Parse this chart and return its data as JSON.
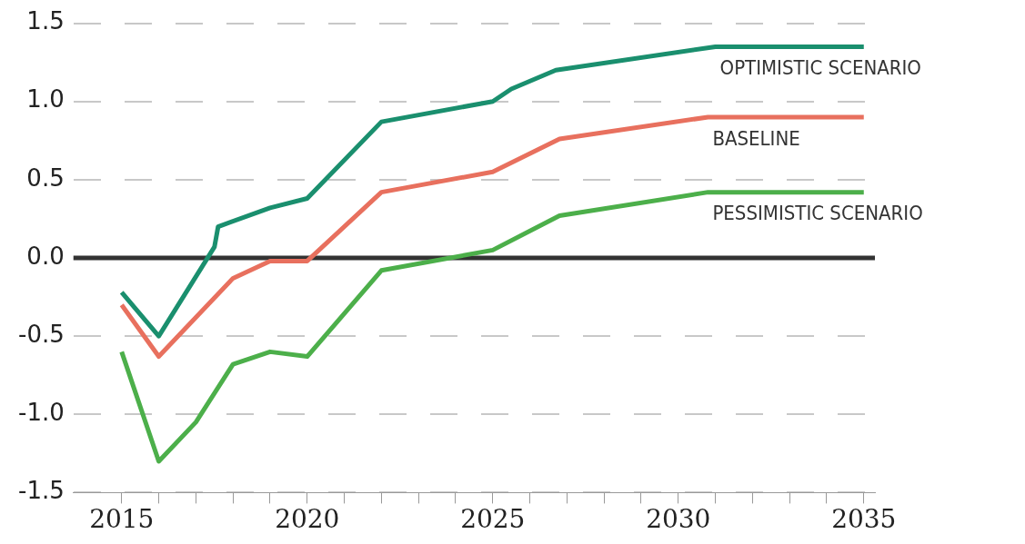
{
  "chart_data": {
    "type": "line",
    "series": [
      {
        "name": "OPTIMISTIC SCENARIO",
        "color": "#1a8f6e",
        "x": [
          2015,
          2016,
          2017.5,
          2017.6,
          2019,
          2020,
          2022,
          2025,
          2025.5,
          2026.7,
          2031,
          2035
        ],
        "values": [
          -0.22,
          -0.5,
          0.07,
          0.2,
          0.32,
          0.38,
          0.87,
          1.0,
          1.08,
          1.2,
          1.35,
          1.35
        ]
      },
      {
        "name": "BASELINE",
        "color": "#e8705e",
        "x": [
          2015,
          2016,
          2018,
          2019,
          2020,
          2022,
          2025,
          2026.8,
          2030.8,
          2035
        ],
        "values": [
          -0.3,
          -0.63,
          -0.13,
          -0.02,
          -0.02,
          0.42,
          0.55,
          0.76,
          0.9,
          0.9
        ]
      },
      {
        "name": "PESSIMISTIC SCENARIO",
        "color": "#4caf4a",
        "x": [
          2015,
          2016,
          2017,
          2018,
          2019,
          2020,
          2022,
          2025,
          2026.8,
          2030.8,
          2035
        ],
        "values": [
          -0.6,
          -1.3,
          -1.05,
          -0.68,
          -0.6,
          -0.63,
          -0.08,
          0.05,
          0.27,
          0.42,
          0.42
        ]
      }
    ],
    "xlim": [
      2013.7,
      2035.3
    ],
    "xticks": [
      2015,
      {
        "value": 2016,
        "label": null
      },
      {
        "value": 2017,
        "label": null
      },
      {
        "value": 2018,
        "label": null
      },
      {
        "value": 2019,
        "label": null
      },
      2020,
      {
        "value": 2021,
        "label": null
      },
      {
        "value": 2022,
        "label": null
      },
      {
        "value": 2023,
        "label": null
      },
      {
        "value": 2024,
        "label": null
      },
      2025,
      {
        "value": 2026,
        "label": null
      },
      {
        "value": 2027,
        "label": null
      },
      {
        "value": 2028,
        "label": null
      },
      {
        "value": 2029,
        "label": null
      },
      2030,
      {
        "value": 2031,
        "label": null
      },
      {
        "value": 2032,
        "label": null
      },
      {
        "value": 2033,
        "label": null
      },
      {
        "value": 2034,
        "label": null
      },
      2035
    ],
    "ylim": [
      -1.5,
      1.5
    ],
    "yticks": [
      {
        "value": -1.5,
        "label": "-1.5"
      },
      {
        "value": -1,
        "label": "-1.0"
      },
      {
        "value": -0.5,
        "label": "-0.5"
      },
      {
        "value": 0,
        "label": "0.0"
      },
      {
        "value": 0.5,
        "label": "0.5"
      },
      {
        "value": 1,
        "label": "1.0"
      },
      {
        "value": 1.5,
        "label": "1.5"
      }
    ],
    "grid": "y",
    "legend": false,
    "marker": "none",
    "line_style": "solid",
    "ref_lines": [
      {
        "axis": "y",
        "value": 0,
        "color": "#333333"
      }
    ]
  }
}
